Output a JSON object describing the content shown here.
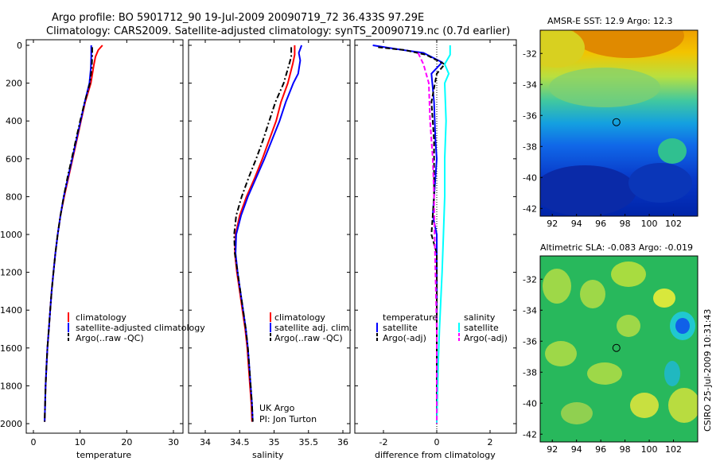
{
  "header": {
    "line1": "Argo profile: BO 5901712_90 19-Jul-2009 20090719_72 36.433S 97.29E",
    "line2": "Climatology: CARS2009. Satellite-adjusted climatology: synTS_20090719.nc (0.7d earlier)"
  },
  "side_caption": "CSIRO 25-Jul-2009 10:31:43",
  "colors": {
    "red": "#ff0000",
    "blue": "#0000ff",
    "black": "#000000",
    "cyan": "#00ffff",
    "magenta": "#ff00ff"
  },
  "chart_data": [
    {
      "type": "line",
      "name": "temperature",
      "xlabel": "temperature",
      "ylabel": "",
      "xlim": [
        -2,
        32
      ],
      "ylim": [
        0,
        2050
      ],
      "xticks": [
        0,
        10,
        20,
        30
      ],
      "yticks": [
        0,
        200,
        400,
        600,
        800,
        1000,
        1200,
        1400,
        1600,
        1800,
        2000
      ],
      "y_reversed": true,
      "legend": [
        "climatology",
        "satellite-adjusted climatology",
        "Argo(..raw -QC)"
      ],
      "series": [
        {
          "name": "climatology",
          "color": "red",
          "style": "solid",
          "width": 2,
          "points": [
            [
              14.8,
              0
            ],
            [
              13.9,
              25
            ],
            [
              13.3,
              60
            ],
            [
              12.9,
              110
            ],
            [
              12.3,
              200
            ],
            [
              11.1,
              300
            ],
            [
              10.2,
              400
            ],
            [
              9.3,
              500
            ],
            [
              8.4,
              600
            ],
            [
              7.5,
              700
            ],
            [
              6.6,
              800
            ],
            [
              5.8,
              900
            ],
            [
              5.2,
              1000
            ],
            [
              4.7,
              1100
            ],
            [
              4.3,
              1200
            ],
            [
              3.9,
              1300
            ],
            [
              3.6,
              1400
            ],
            [
              3.3,
              1500
            ],
            [
              3.0,
              1600
            ],
            [
              2.8,
              1700
            ],
            [
              2.6,
              1800
            ],
            [
              2.5,
              1900
            ],
            [
              2.4,
              1990
            ]
          ]
        },
        {
          "name": "satellite-adjusted climatology",
          "color": "blue",
          "style": "solid",
          "width": 2,
          "points": [
            [
              12.4,
              0
            ],
            [
              12.4,
              60
            ],
            [
              12.3,
              120
            ],
            [
              12.0,
              200
            ],
            [
              11.0,
              300
            ],
            [
              10.1,
              400
            ],
            [
              9.2,
              500
            ],
            [
              8.3,
              600
            ],
            [
              7.4,
              700
            ],
            [
              6.5,
              800
            ],
            [
              5.8,
              900
            ],
            [
              5.2,
              1000
            ],
            [
              4.7,
              1100
            ],
            [
              4.3,
              1200
            ],
            [
              3.9,
              1300
            ],
            [
              3.6,
              1400
            ],
            [
              3.3,
              1500
            ],
            [
              3.0,
              1600
            ],
            [
              2.8,
              1700
            ],
            [
              2.6,
              1800
            ],
            [
              2.5,
              1900
            ],
            [
              2.4,
              1990
            ]
          ]
        },
        {
          "name": "Argo(..raw -QC)",
          "color": "black",
          "style": "dashdot",
          "width": 2,
          "points": [
            [
              12.6,
              10
            ],
            [
              12.6,
              60
            ],
            [
              12.5,
              120
            ],
            [
              12.1,
              200
            ],
            [
              11.0,
              300
            ],
            [
              10.0,
              400
            ],
            [
              9.1,
              500
            ],
            [
              8.2,
              600
            ],
            [
              7.3,
              700
            ],
            [
              6.5,
              800
            ],
            [
              5.8,
              900
            ],
            [
              5.2,
              1000
            ],
            [
              4.7,
              1100
            ],
            [
              4.3,
              1200
            ],
            [
              3.9,
              1300
            ],
            [
              3.6,
              1400
            ],
            [
              3.3,
              1500
            ],
            [
              3.0,
              1600
            ],
            [
              2.8,
              1700
            ],
            [
              2.6,
              1800
            ],
            [
              2.5,
              1900
            ],
            [
              2.4,
              1990
            ]
          ]
        }
      ]
    },
    {
      "type": "line",
      "name": "salinity",
      "xlabel": "salinity",
      "ylabel": "",
      "xlim": [
        33.8,
        36.1
      ],
      "ylim": [
        0,
        2050
      ],
      "xticks": [
        34,
        34.5,
        35,
        35.5,
        36
      ],
      "yticks": [],
      "y_reversed": true,
      "legend": [
        "climatology",
        "satellite adj. clim.",
        "Argo(..raw -QC)"
      ],
      "annotation_lines": [
        "UK Argo",
        "PI: Jon Turton"
      ],
      "series": [
        {
          "name": "climatology",
          "color": "red",
          "style": "solid",
          "width": 2,
          "points": [
            [
              35.3,
              0
            ],
            [
              35.3,
              50
            ],
            [
              35.27,
              100
            ],
            [
              35.2,
              200
            ],
            [
              35.1,
              300
            ],
            [
              35.03,
              400
            ],
            [
              34.93,
              500
            ],
            [
              34.83,
              600
            ],
            [
              34.72,
              700
            ],
            [
              34.6,
              800
            ],
            [
              34.5,
              900
            ],
            [
              34.44,
              1000
            ],
            [
              34.43,
              1100
            ],
            [
              34.46,
              1200
            ],
            [
              34.5,
              1300
            ],
            [
              34.54,
              1400
            ],
            [
              34.58,
              1500
            ],
            [
              34.61,
              1600
            ],
            [
              34.63,
              1700
            ],
            [
              34.65,
              1800
            ],
            [
              34.67,
              1900
            ],
            [
              34.68,
              1990
            ]
          ]
        },
        {
          "name": "satellite adj. clim.",
          "color": "blue",
          "style": "solid",
          "width": 2,
          "points": [
            [
              35.4,
              0
            ],
            [
              35.36,
              40
            ],
            [
              35.38,
              80
            ],
            [
              35.35,
              150
            ],
            [
              35.28,
              200
            ],
            [
              35.17,
              300
            ],
            [
              35.08,
              400
            ],
            [
              34.97,
              500
            ],
            [
              34.86,
              600
            ],
            [
              34.74,
              700
            ],
            [
              34.62,
              800
            ],
            [
              34.52,
              900
            ],
            [
              34.45,
              1000
            ],
            [
              34.44,
              1100
            ],
            [
              34.47,
              1200
            ],
            [
              34.51,
              1300
            ],
            [
              34.55,
              1400
            ],
            [
              34.59,
              1500
            ],
            [
              34.62,
              1600
            ],
            [
              34.64,
              1700
            ],
            [
              34.66,
              1800
            ],
            [
              34.68,
              1900
            ],
            [
              34.69,
              1990
            ]
          ]
        },
        {
          "name": "Argo(..raw -QC)",
          "color": "black",
          "style": "dashdot",
          "width": 2,
          "points": [
            [
              35.25,
              10
            ],
            [
              35.25,
              60
            ],
            [
              35.22,
              100
            ],
            [
              35.14,
              200
            ],
            [
              35.02,
              300
            ],
            [
              34.93,
              400
            ],
            [
              34.84,
              500
            ],
            [
              34.74,
              600
            ],
            [
              34.63,
              700
            ],
            [
              34.53,
              800
            ],
            [
              34.45,
              900
            ],
            [
              34.42,
              1000
            ],
            [
              34.43,
              1100
            ],
            [
              34.47,
              1200
            ],
            [
              34.51,
              1300
            ],
            [
              34.55,
              1400
            ],
            [
              34.59,
              1500
            ],
            [
              34.62,
              1600
            ],
            [
              34.64,
              1700
            ],
            [
              34.66,
              1800
            ],
            [
              34.68,
              1900
            ],
            [
              34.69,
              1990
            ]
          ]
        }
      ]
    },
    {
      "type": "line",
      "name": "difference",
      "xlabel": "difference from climatology",
      "ylabel": "",
      "xlim": [
        -2.9,
        3.1
      ],
      "ylim": [
        0,
        2050
      ],
      "xticks": [
        -2,
        0,
        2
      ],
      "yticks": [],
      "y_reversed": true,
      "zero_line": true,
      "legend_groups": [
        {
          "title": "temperature",
          "items": [
            {
              "label": "satellite",
              "color": "blue",
              "style": "solid"
            },
            {
              "label": "Argo(-adj)",
              "color": "black",
              "style": "dashed"
            }
          ]
        },
        {
          "title": "salinity",
          "items": [
            {
              "label": "satellite",
              "color": "cyan",
              "style": "solid"
            },
            {
              "label": "Argo(-adj)",
              "color": "magenta",
              "style": "dashed"
            }
          ]
        }
      ],
      "series": [
        {
          "name": "temperature satellite",
          "color": "blue",
          "style": "solid",
          "width": 2,
          "points": [
            [
              -2.4,
              0
            ],
            [
              -1.5,
              20
            ],
            [
              -0.5,
              40
            ],
            [
              0.2,
              90
            ],
            [
              -0.2,
              150
            ],
            [
              -0.1,
              300
            ],
            [
              -0.05,
              500
            ],
            [
              0.0,
              600
            ],
            [
              -0.1,
              800
            ],
            [
              -0.15,
              900
            ],
            [
              0.0,
              1000
            ],
            [
              0.0,
              1200
            ],
            [
              0.0,
              1500
            ],
            [
              0.0,
              2000
            ]
          ]
        },
        {
          "name": "temperature Argo(-adj)",
          "color": "black",
          "style": "dashed",
          "width": 2,
          "points": [
            [
              -2.2,
              10
            ],
            [
              -1.2,
              25
            ],
            [
              -0.4,
              50
            ],
            [
              0.3,
              100
            ],
            [
              0.0,
              150
            ],
            [
              -0.2,
              300
            ],
            [
              -0.1,
              500
            ],
            [
              -0.1,
              800
            ],
            [
              -0.2,
              1000
            ],
            [
              0.0,
              1100
            ],
            [
              0.0,
              1500
            ],
            [
              0.0,
              2000
            ]
          ]
        },
        {
          "name": "salinity satellite",
          "color": "cyan",
          "style": "solid",
          "width": 2,
          "points": [
            [
              0.5,
              0
            ],
            [
              0.5,
              50
            ],
            [
              0.3,
              100
            ],
            [
              0.45,
              150
            ],
            [
              0.3,
              200
            ],
            [
              0.35,
              400
            ],
            [
              0.3,
              600
            ],
            [
              0.3,
              800
            ],
            [
              0.25,
              1000
            ],
            [
              0.2,
              1200
            ],
            [
              0.1,
              1500
            ],
            [
              0.05,
              1700
            ],
            [
              0.0,
              2000
            ]
          ]
        },
        {
          "name": "salinity Argo(-adj)",
          "color": "magenta",
          "style": "dashed",
          "width": 2,
          "points": [
            [
              -0.7,
              40
            ],
            [
              -0.5,
              100
            ],
            [
              -0.3,
              200
            ],
            [
              -0.25,
              400
            ],
            [
              -0.15,
              600
            ],
            [
              -0.1,
              800
            ],
            [
              -0.08,
              1000
            ],
            [
              -0.05,
              1200
            ],
            [
              0.0,
              1500
            ],
            [
              0.0,
              2000
            ]
          ]
        }
      ]
    },
    {
      "type": "heatmap",
      "name": "sst-map",
      "title": "AMSR-E SST: 12.9  Argo: 12.3",
      "xlim": [
        91,
        104
      ],
      "ylim": [
        -42.5,
        -30.5
      ],
      "xticks": [
        92,
        94,
        96,
        98,
        100,
        102
      ],
      "yticks": [
        -32,
        -34,
        -36,
        -38,
        -40,
        -42
      ],
      "marker": {
        "lon": 97.29,
        "lat": -36.433
      }
    },
    {
      "type": "heatmap",
      "name": "sla-map",
      "title": "Altimetric SLA: -0.083  Argo: -0.019",
      "xlim": [
        91,
        104
      ],
      "ylim": [
        -42.5,
        -30.5
      ],
      "xticks": [
        92,
        94,
        96,
        98,
        100,
        102
      ],
      "yticks": [
        -32,
        -34,
        -36,
        -38,
        -40,
        -42
      ],
      "marker": {
        "lon": 97.29,
        "lat": -36.433
      }
    }
  ]
}
